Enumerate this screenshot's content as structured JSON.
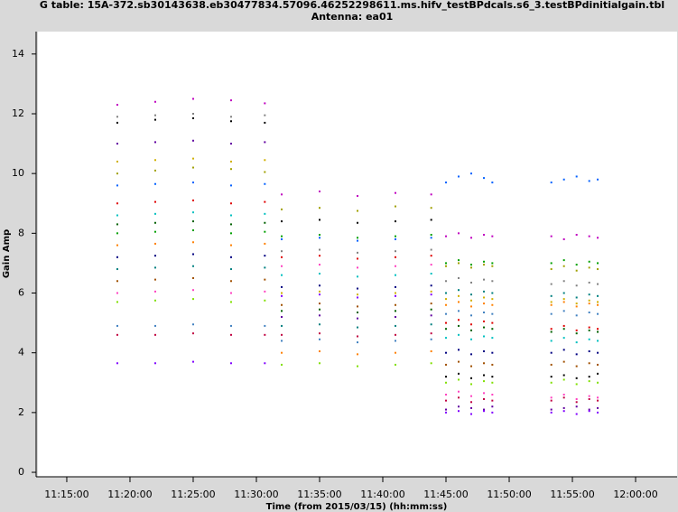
{
  "chart_data": {
    "type": "scatter",
    "title": "G table: 15A-372.sb30143638.eb30477834.57096.46252298611.ms.hifv_testBPdcals.s6_3.testBPdinitialgain.tbl",
    "subtitle": "Antenna: ea01",
    "x_label": "Time (from 2015/03/15) (hh:mm:ss)",
    "y_label": "Gain Amp",
    "xlim": [
      40363,
      43397
    ],
    "ylim": [
      -0.15,
      14.75
    ],
    "xticks": [
      {
        "value": 40500,
        "label": "11:15:00"
      },
      {
        "value": 40800,
        "label": "11:20:00"
      },
      {
        "value": 41100,
        "label": "11:25:00"
      },
      {
        "value": 41400,
        "label": "11:30:00"
      },
      {
        "value": 41700,
        "label": "11:35:00"
      },
      {
        "value": 42000,
        "label": "11:40:00"
      },
      {
        "value": 42300,
        "label": "11:45:00"
      },
      {
        "value": 42600,
        "label": "11:50:00"
      },
      {
        "value": 42900,
        "label": "11:55:00"
      },
      {
        "value": 43200,
        "label": "12:00:00"
      }
    ],
    "yticks": [
      0,
      2,
      4,
      6,
      8,
      10,
      12,
      14
    ],
    "x": [
      40740,
      40920,
      41100,
      41280,
      41440,
      41520,
      41700,
      41880,
      42060,
      42230,
      42300,
      42360,
      42420,
      42480,
      42520,
      42800,
      42860,
      42920,
      42980,
      43020
    ],
    "series": [
      {
        "color": "#c000c0",
        "values": [
          12.3,
          12.4,
          12.5,
          12.45,
          12.35,
          9.3,
          9.4,
          9.25,
          9.35,
          9.3,
          7.9,
          8.0,
          7.85,
          7.95,
          7.9,
          7.9,
          7.8,
          7.95,
          7.9,
          7.85
        ]
      },
      {
        "color": "#000000",
        "values": [
          11.7,
          11.8,
          11.85,
          11.75,
          11.7,
          8.4,
          8.45,
          8.35,
          8.4,
          8.45,
          3.2,
          3.3,
          3.15,
          3.25,
          3.2,
          3.2,
          3.25,
          3.15,
          3.2,
          3.3
        ]
      },
      {
        "color": "#6000a0",
        "values": [
          11.0,
          11.05,
          11.1,
          11.0,
          11.05,
          5.2,
          5.25,
          5.15,
          5.2,
          5.25,
          2.1,
          2.2,
          2.15,
          2.1,
          2.2,
          2.1,
          2.15,
          2.2,
          2.1,
          2.15
        ]
      },
      {
        "color": "#a0a000",
        "values": [
          10.0,
          10.1,
          10.2,
          10.15,
          10.05,
          8.8,
          8.85,
          8.75,
          8.9,
          8.85,
          6.9,
          7.0,
          6.85,
          6.95,
          6.9,
          6.8,
          6.9,
          6.75,
          6.85,
          6.8
        ]
      },
      {
        "color": "#0060ff",
        "values": [
          9.6,
          9.65,
          9.7,
          9.6,
          9.65,
          7.8,
          7.85,
          7.75,
          7.8,
          7.85,
          9.7,
          9.9,
          10.0,
          9.85,
          9.7,
          9.7,
          9.8,
          9.9,
          9.75,
          9.8
        ]
      },
      {
        "color": "#e00000",
        "values": [
          9.0,
          9.05,
          9.1,
          9.0,
          9.05,
          7.2,
          7.25,
          7.15,
          7.2,
          7.25,
          5.0,
          5.1,
          4.95,
          5.05,
          5.0,
          4.8,
          4.9,
          4.75,
          4.85,
          4.8
        ]
      },
      {
        "color": "#00c0c0",
        "values": [
          8.6,
          8.65,
          8.7,
          8.6,
          8.65,
          6.6,
          6.65,
          6.55,
          6.6,
          6.65,
          4.5,
          4.6,
          4.45,
          4.55,
          4.5,
          4.4,
          4.5,
          4.35,
          4.45,
          4.4
        ]
      },
      {
        "color": "#00a000",
        "values": [
          8.0,
          8.05,
          8.1,
          8.0,
          8.05,
          7.9,
          7.95,
          7.85,
          7.9,
          7.95,
          7.0,
          7.1,
          6.95,
          7.05,
          7.0,
          7.0,
          7.1,
          6.95,
          7.05,
          7.0
        ]
      },
      {
        "color": "#ff8000",
        "values": [
          7.6,
          7.65,
          7.7,
          7.6,
          7.65,
          4.0,
          4.05,
          3.95,
          4.0,
          4.05,
          5.6,
          5.7,
          5.55,
          5.65,
          5.6,
          5.6,
          5.7,
          5.55,
          5.65,
          5.6
        ]
      },
      {
        "color": "#000080",
        "values": [
          7.2,
          7.25,
          7.3,
          7.2,
          7.25,
          6.2,
          6.25,
          6.15,
          6.2,
          6.25,
          4.0,
          4.1,
          3.95,
          4.05,
          4.0,
          4.0,
          4.1,
          3.95,
          4.05,
          4.0
        ]
      },
      {
        "color": "#008080",
        "values": [
          6.8,
          6.85,
          6.9,
          6.8,
          6.85,
          4.9,
          4.95,
          4.85,
          4.9,
          4.95,
          6.0,
          6.1,
          5.95,
          6.05,
          6.0,
          5.9,
          6.0,
          5.85,
          5.95,
          5.9
        ]
      },
      {
        "color": "#a05000",
        "values": [
          6.4,
          6.45,
          6.5,
          6.4,
          6.45,
          5.6,
          5.65,
          5.55,
          5.6,
          5.65,
          3.6,
          3.7,
          3.55,
          3.65,
          3.6,
          3.6,
          3.7,
          3.55,
          3.65,
          3.6
        ]
      },
      {
        "color": "#ff40c0",
        "values": [
          6.0,
          6.05,
          6.1,
          6.0,
          6.05,
          6.9,
          6.95,
          6.85,
          6.9,
          6.95,
          2.6,
          2.7,
          2.55,
          2.65,
          2.6,
          2.5,
          2.6,
          2.45,
          2.55,
          2.5
        ]
      },
      {
        "color": "#80e000",
        "values": [
          5.7,
          5.75,
          5.8,
          5.7,
          5.75,
          3.6,
          3.65,
          3.55,
          3.6,
          3.65,
          3.0,
          3.1,
          2.95,
          3.05,
          3.0,
          3.0,
          3.1,
          2.95,
          3.05,
          3.0
        ]
      },
      {
        "color": "#4080c0",
        "values": [
          4.9,
          4.9,
          4.95,
          4.9,
          4.9,
          4.4,
          4.45,
          4.35,
          4.4,
          4.45,
          5.3,
          5.4,
          5.25,
          5.35,
          5.3,
          5.3,
          5.4,
          5.25,
          5.35,
          5.3
        ]
      },
      {
        "color": "#c00040",
        "values": [
          4.6,
          4.6,
          4.65,
          4.6,
          4.6,
          4.6,
          4.65,
          4.55,
          4.6,
          4.65,
          2.4,
          2.5,
          2.35,
          2.45,
          2.4,
          2.4,
          2.5,
          2.35,
          2.45,
          2.4
        ]
      },
      {
        "color": "#8000ff",
        "values": [
          3.65,
          3.65,
          3.7,
          3.65,
          3.65,
          5.9,
          5.95,
          5.85,
          5.9,
          5.95,
          2.0,
          2.05,
          1.95,
          2.05,
          2.0,
          2.0,
          2.05,
          1.95,
          2.05,
          2.0
        ]
      },
      {
        "color": "#006000",
        "values": [
          8.3,
          8.35,
          8.4,
          8.3,
          8.35,
          5.4,
          5.45,
          5.35,
          5.4,
          5.45,
          4.8,
          4.9,
          4.75,
          4.85,
          4.8,
          4.7,
          4.8,
          4.65,
          4.75,
          4.7
        ]
      },
      {
        "color": "#d0b000",
        "values": [
          10.4,
          10.45,
          10.5,
          10.4,
          10.45,
          6.0,
          6.05,
          5.95,
          6.0,
          6.05,
          5.8,
          5.9,
          5.75,
          5.85,
          5.8,
          5.7,
          5.8,
          5.65,
          5.75,
          5.7
        ]
      },
      {
        "color": "#808080",
        "values": [
          11.9,
          11.95,
          12.0,
          11.9,
          11.95,
          7.4,
          7.45,
          7.35,
          7.4,
          7.45,
          6.4,
          6.5,
          6.35,
          6.45,
          6.4,
          6.3,
          6.4,
          6.25,
          6.35,
          6.3
        ]
      }
    ]
  }
}
